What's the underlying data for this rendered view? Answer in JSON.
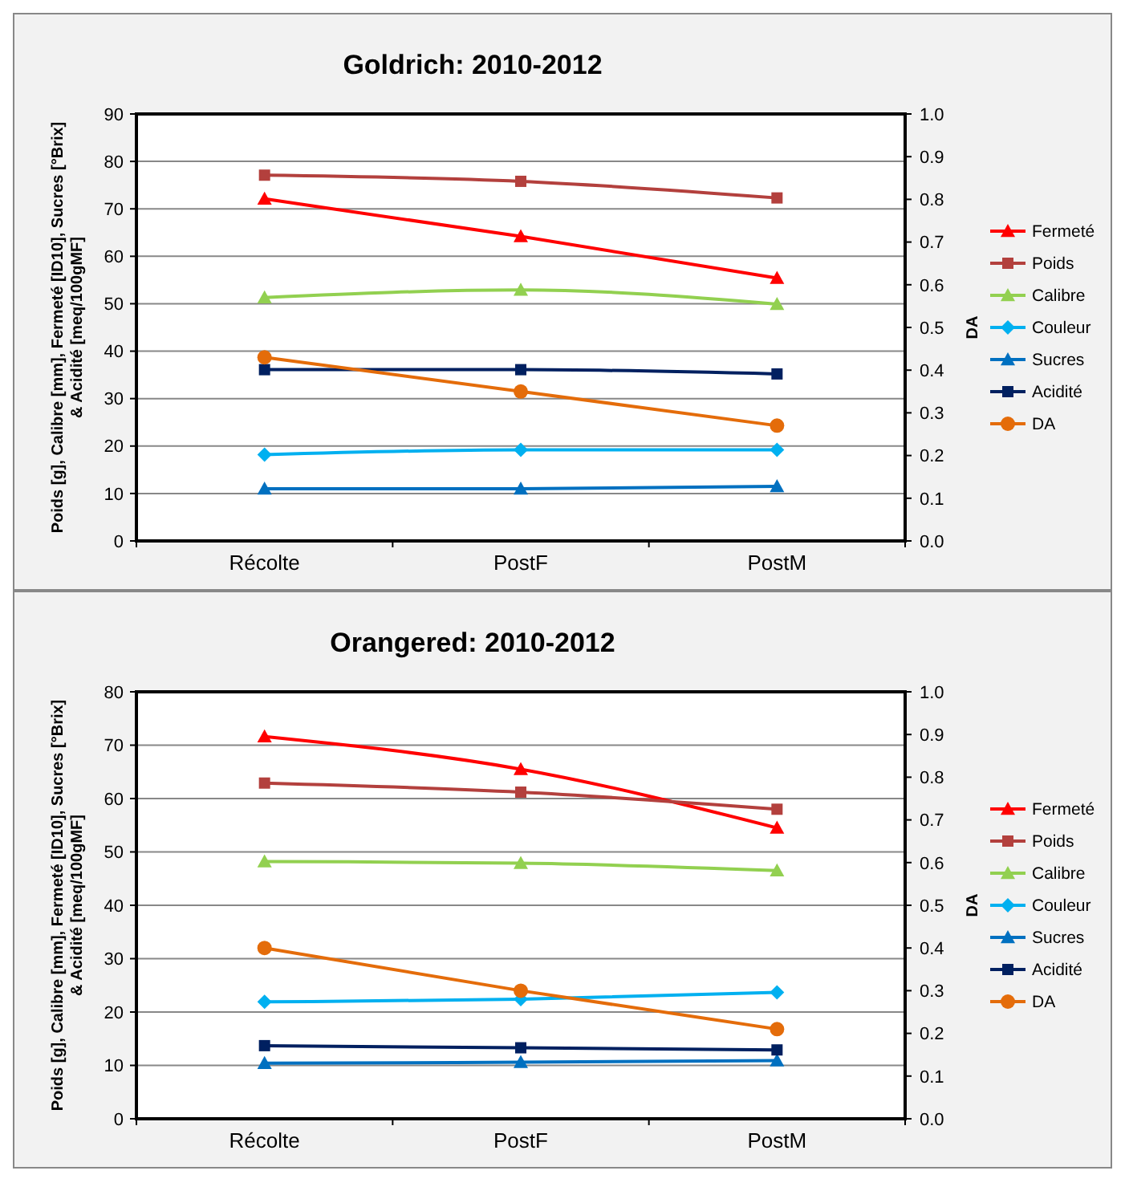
{
  "chart_data": [
    {
      "type": "line",
      "title": "Goldrich: 2010-2012",
      "ylabel": "Poids [g], Calibre [mm], Fermeté [ID10], Sucres [°Brix] & Acidité [meq/100gMF]",
      "y2label": "DA",
      "categories": [
        "Récolte",
        "PostF",
        "PostM"
      ],
      "ylim": [
        0,
        90
      ],
      "yticks": [
        0,
        10,
        20,
        30,
        40,
        50,
        60,
        70,
        80,
        90
      ],
      "y2lim": [
        0,
        1
      ],
      "y2ticks": [
        {
          "value": 0,
          "label": "0.0"
        },
        {
          "value": 0.1,
          "label": "0.1"
        },
        {
          "value": 0.2,
          "label": "0.2"
        },
        {
          "value": 0.3,
          "label": "0.3"
        },
        {
          "value": 0.4,
          "label": "0.4"
        },
        {
          "value": 0.5,
          "label": "0.5"
        },
        {
          "value": 0.6,
          "label": "0.6"
        },
        {
          "value": 0.7,
          "label": "0.7"
        },
        {
          "value": 0.8,
          "label": "0.8"
        },
        {
          "value": 0.9,
          "label": "0.9"
        },
        {
          "value": 1,
          "label": "1.0"
        }
      ],
      "grid": "y",
      "legend": "right",
      "series": [
        {
          "name": "Fermeté",
          "color": "#ff0000",
          "marker": "triangle",
          "values": [
            72.1,
            64.2,
            55.4
          ]
        },
        {
          "name": "Poids",
          "color": "#b3403d",
          "marker": "square",
          "values": [
            77.1,
            75.8,
            72.3
          ]
        },
        {
          "name": "Calibre",
          "color": "#92d050",
          "marker": "triangle",
          "values": [
            51.3,
            52.9,
            49.9
          ]
        },
        {
          "name": "Couleur",
          "color": "#00b0f0",
          "marker": "diamond",
          "values": [
            18.2,
            19.2,
            19.2
          ]
        },
        {
          "name": "Sucres",
          "color": "#0070c0",
          "marker": "triangle",
          "values": [
            11.0,
            11.0,
            11.5
          ]
        },
        {
          "name": "Acidité",
          "color": "#002060",
          "marker": "square",
          "values": [
            36.1,
            36.1,
            35.2
          ]
        },
        {
          "name": "DA",
          "color": "#e46c0a",
          "marker": "circle",
          "axis": "y2",
          "values": [
            0.43,
            0.35,
            0.27
          ]
        }
      ]
    },
    {
      "type": "line",
      "title": "Orangered: 2010-2012",
      "ylabel": "Poids [g], Calibre [mm], Fermeté [ID10], Sucres [°Brix] & Acidité [meq/100gMF]",
      "y2label": "DA",
      "categories": [
        "Récolte",
        "PostF",
        "PostM"
      ],
      "ylim": [
        0,
        80
      ],
      "yticks": [
        0,
        10,
        20,
        30,
        40,
        50,
        60,
        70,
        80
      ],
      "y2lim": [
        0,
        1
      ],
      "y2ticks": [
        {
          "value": 0,
          "label": "0.0"
        },
        {
          "value": 0.1,
          "label": "0.1"
        },
        {
          "value": 0.2,
          "label": "0.2"
        },
        {
          "value": 0.3,
          "label": "0.3"
        },
        {
          "value": 0.4,
          "label": "0.4"
        },
        {
          "value": 0.5,
          "label": "0.5"
        },
        {
          "value": 0.6,
          "label": "0.6"
        },
        {
          "value": 0.7,
          "label": "0.7"
        },
        {
          "value": 0.8,
          "label": "0.8"
        },
        {
          "value": 0.9,
          "label": "0.9"
        },
        {
          "value": 1,
          "label": "1.0"
        }
      ],
      "grid": "y",
      "legend": "right",
      "series": [
        {
          "name": "Fermeté",
          "color": "#ff0000",
          "marker": "triangle",
          "values": [
            71.6,
            65.5,
            54.5
          ]
        },
        {
          "name": "Poids",
          "color": "#b3403d",
          "marker": "square",
          "values": [
            62.9,
            61.2,
            58.0
          ]
        },
        {
          "name": "Calibre",
          "color": "#92d050",
          "marker": "triangle",
          "values": [
            48.2,
            47.9,
            46.5
          ]
        },
        {
          "name": "Couleur",
          "color": "#00b0f0",
          "marker": "diamond",
          "values": [
            21.9,
            22.4,
            23.7
          ]
        },
        {
          "name": "Sucres",
          "color": "#0070c0",
          "marker": "triangle",
          "values": [
            10.4,
            10.6,
            10.9
          ]
        },
        {
          "name": "Acidité",
          "color": "#002060",
          "marker": "square",
          "values": [
            13.7,
            13.3,
            12.9
          ]
        },
        {
          "name": "DA",
          "color": "#e46c0a",
          "marker": "circle",
          "axis": "y2",
          "values": [
            0.4,
            0.3,
            0.21
          ]
        }
      ]
    }
  ]
}
